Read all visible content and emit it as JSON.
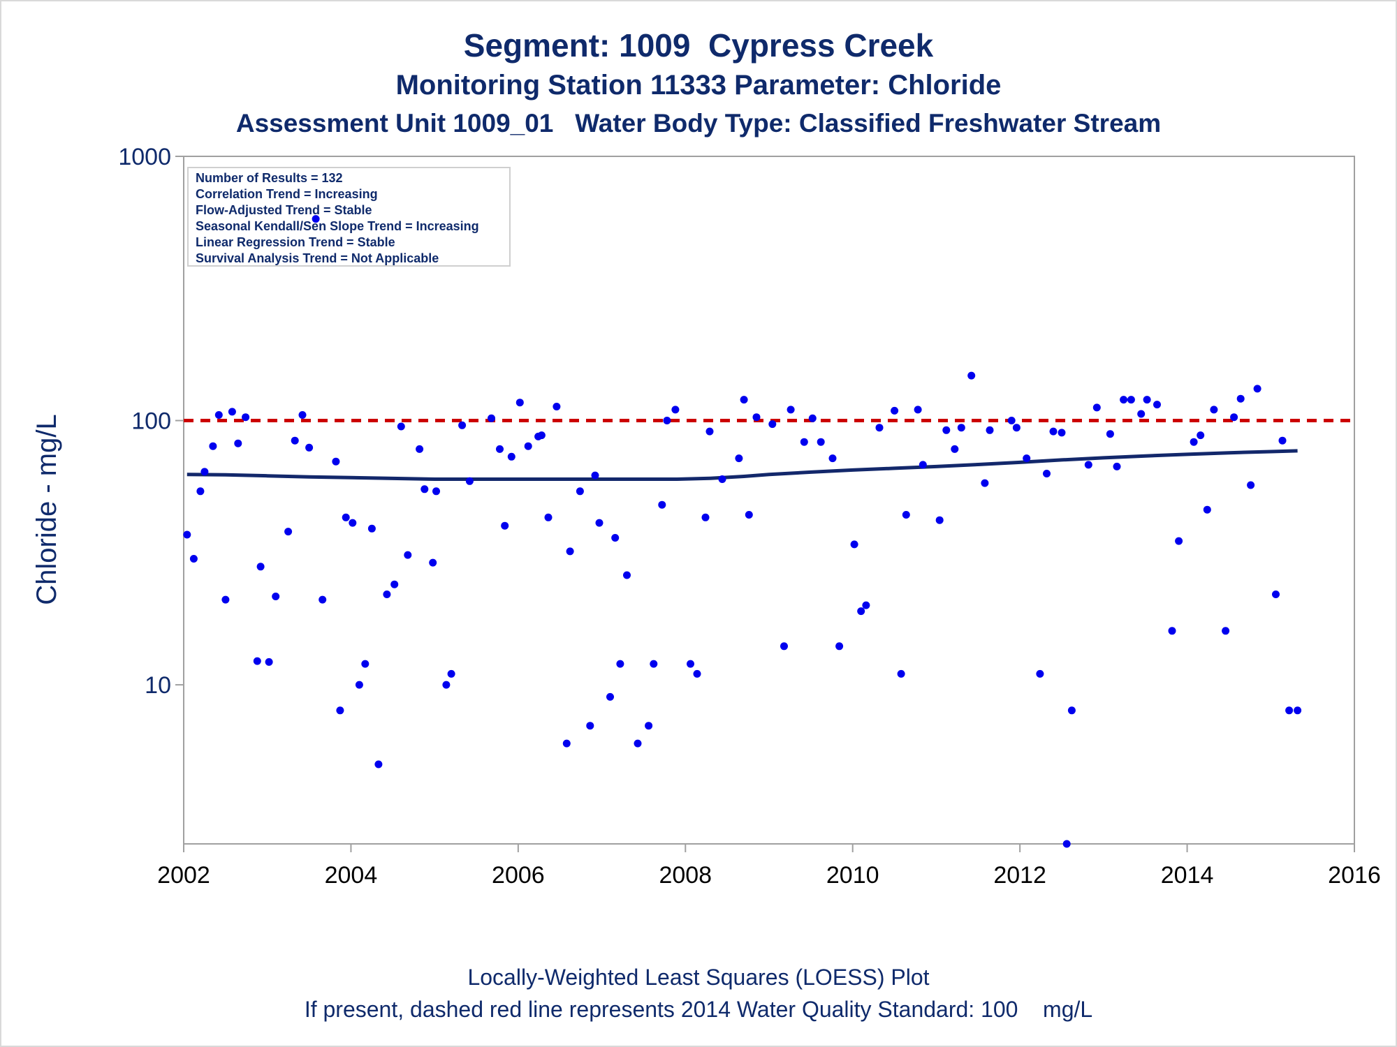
{
  "title": "Segment: 1009  Cypress Creek",
  "subtitle1": "Monitoring Station 11333 Parameter: Chloride",
  "subtitle2": "Assessment Unit 1009_01   Water Body Type: Classified Freshwater Stream",
  "footnotes": [
    "Locally-Weighted Least Squares (LOESS) Plot",
    "If present, dashed red line represents 2014 Water Quality Standard: 100    mg/L"
  ],
  "stats_box": [
    "Number of Results = 132",
    "Correlation Trend = Increasing",
    "Flow-Adjusted Trend = Stable",
    "Seasonal Kendall/Sen Slope Trend = Increasing",
    "Linear Regression Trend = Stable",
    "Survival Analysis Trend = Not Applicable"
  ],
  "colors": {
    "points": "#0000ee",
    "loess": "#13286b",
    "standard": "#cc0000",
    "text": "#0f2a6b",
    "frame": "#a0a0a0"
  },
  "chart_data": {
    "type": "scatter",
    "ylabel": "Chloride - mg/L",
    "xlabel": "",
    "y_scale": "log",
    "xlim": [
      2002,
      2016
    ],
    "ylim": [
      2.5,
      1000
    ],
    "x_ticks": [
      2002,
      2004,
      2006,
      2008,
      2010,
      2012,
      2014,
      2016
    ],
    "y_ticks": [
      10,
      100,
      1000
    ],
    "grid": false,
    "standard_line": 100,
    "points": [
      [
        2002.04,
        37
      ],
      [
        2002.12,
        30
      ],
      [
        2002.2,
        54
      ],
      [
        2002.25,
        64
      ],
      [
        2002.35,
        80
      ],
      [
        2002.42,
        105
      ],
      [
        2002.5,
        21
      ],
      [
        2002.58,
        108
      ],
      [
        2002.65,
        82
      ],
      [
        2002.74,
        103
      ],
      [
        2002.88,
        12.3
      ],
      [
        2002.92,
        28
      ],
      [
        2003.02,
        12.2
      ],
      [
        2003.1,
        21.6
      ],
      [
        2003.25,
        38
      ],
      [
        2003.33,
        84
      ],
      [
        2003.42,
        105
      ],
      [
        2003.5,
        79
      ],
      [
        2003.58,
        580
      ],
      [
        2003.66,
        21
      ],
      [
        2003.82,
        70
      ],
      [
        2003.87,
        8
      ],
      [
        2003.94,
        43
      ],
      [
        2004.02,
        41
      ],
      [
        2004.1,
        10
      ],
      [
        2004.17,
        12
      ],
      [
        2004.25,
        39
      ],
      [
        2004.33,
        5
      ],
      [
        2004.43,
        22
      ],
      [
        2004.52,
        24
      ],
      [
        2004.6,
        95
      ],
      [
        2004.68,
        31
      ],
      [
        2004.82,
        78
      ],
      [
        2004.88,
        55
      ],
      [
        2004.98,
        29
      ],
      [
        2005.02,
        54
      ],
      [
        2005.14,
        10
      ],
      [
        2005.2,
        11
      ],
      [
        2005.33,
        96
      ],
      [
        2005.42,
        59
      ],
      [
        2005.68,
        102
      ],
      [
        2005.78,
        78
      ],
      [
        2005.84,
        40
      ],
      [
        2005.92,
        73
      ],
      [
        2006.02,
        117
      ],
      [
        2006.12,
        80
      ],
      [
        2006.24,
        87
      ],
      [
        2006.28,
        88
      ],
      [
        2006.36,
        43
      ],
      [
        2006.46,
        113
      ],
      [
        2006.58,
        6
      ],
      [
        2006.62,
        32
      ],
      [
        2006.74,
        54
      ],
      [
        2006.86,
        7
      ],
      [
        2006.92,
        62
      ],
      [
        2006.97,
        41
      ],
      [
        2007.1,
        9
      ],
      [
        2007.16,
        36
      ],
      [
        2007.22,
        12
      ],
      [
        2007.3,
        26
      ],
      [
        2007.43,
        6
      ],
      [
        2007.56,
        7
      ],
      [
        2007.62,
        12
      ],
      [
        2007.72,
        48
      ],
      [
        2007.78,
        100
      ],
      [
        2007.88,
        110
      ],
      [
        2008.06,
        12
      ],
      [
        2008.14,
        11
      ],
      [
        2008.24,
        43
      ],
      [
        2008.29,
        91
      ],
      [
        2008.44,
        60
      ],
      [
        2008.64,
        72
      ],
      [
        2008.7,
        120
      ],
      [
        2008.76,
        44
      ],
      [
        2008.85,
        103
      ],
      [
        2009.04,
        97
      ],
      [
        2009.18,
        14
      ],
      [
        2009.26,
        110
      ],
      [
        2009.42,
        83
      ],
      [
        2009.52,
        102
      ],
      [
        2009.62,
        83
      ],
      [
        2009.76,
        72
      ],
      [
        2009.84,
        14
      ],
      [
        2010.02,
        34
      ],
      [
        2010.1,
        19
      ],
      [
        2010.16,
        20
      ],
      [
        2010.32,
        94
      ],
      [
        2010.5,
        109
      ],
      [
        2010.58,
        11
      ],
      [
        2010.64,
        44
      ],
      [
        2010.78,
        110
      ],
      [
        2010.84,
        68
      ],
      [
        2011.04,
        42
      ],
      [
        2011.12,
        92
      ],
      [
        2011.22,
        78
      ],
      [
        2011.3,
        94
      ],
      [
        2011.42,
        148
      ],
      [
        2011.58,
        58
      ],
      [
        2011.64,
        92
      ],
      [
        2011.9,
        100
      ],
      [
        2011.96,
        94
      ],
      [
        2012.08,
        72
      ],
      [
        2012.24,
        11
      ],
      [
        2012.32,
        63
      ],
      [
        2012.4,
        91
      ],
      [
        2012.5,
        90
      ],
      [
        2012.56,
        2.5
      ],
      [
        2012.62,
        8
      ],
      [
        2012.82,
        68
      ],
      [
        2012.92,
        112
      ],
      [
        2013.08,
        89
      ],
      [
        2013.16,
        67
      ],
      [
        2013.24,
        120
      ],
      [
        2013.33,
        120
      ],
      [
        2013.45,
        106
      ],
      [
        2013.52,
        120
      ],
      [
        2013.64,
        115
      ],
      [
        2013.82,
        16
      ],
      [
        2013.9,
        35
      ],
      [
        2014.08,
        83
      ],
      [
        2014.16,
        88
      ],
      [
        2014.24,
        46
      ],
      [
        2014.32,
        110
      ],
      [
        2014.46,
        16
      ],
      [
        2014.56,
        103
      ],
      [
        2014.64,
        121
      ],
      [
        2014.76,
        57
      ],
      [
        2014.84,
        132
      ],
      [
        2015.06,
        22
      ],
      [
        2015.14,
        84
      ],
      [
        2015.22,
        8
      ],
      [
        2015.32,
        8
      ]
    ],
    "loess": [
      [
        2002.04,
        62.5
      ],
      [
        2002.5,
        62.3
      ],
      [
        2003.0,
        61.8
      ],
      [
        2003.5,
        61.2
      ],
      [
        2004.0,
        60.8
      ],
      [
        2004.5,
        60.4
      ],
      [
        2005.0,
        60.0
      ],
      [
        2005.5,
        60.0
      ],
      [
        2006.0,
        60.0
      ],
      [
        2006.5,
        60.0
      ],
      [
        2007.0,
        60.0
      ],
      [
        2007.5,
        60.0
      ],
      [
        2007.9,
        60.0
      ],
      [
        2008.3,
        60.5
      ],
      [
        2008.7,
        61.5
      ],
      [
        2009.0,
        62.5
      ],
      [
        2009.5,
        63.8
      ],
      [
        2010.0,
        65.0
      ],
      [
        2010.5,
        66.0
      ],
      [
        2011.0,
        67.0
      ],
      [
        2011.5,
        68.2
      ],
      [
        2012.0,
        69.5
      ],
      [
        2012.5,
        71.0
      ],
      [
        2013.0,
        72.3
      ],
      [
        2013.5,
        73.5
      ],
      [
        2014.0,
        74.5
      ],
      [
        2014.5,
        75.5
      ],
      [
        2015.0,
        76.3
      ],
      [
        2015.32,
        76.8
      ]
    ]
  }
}
